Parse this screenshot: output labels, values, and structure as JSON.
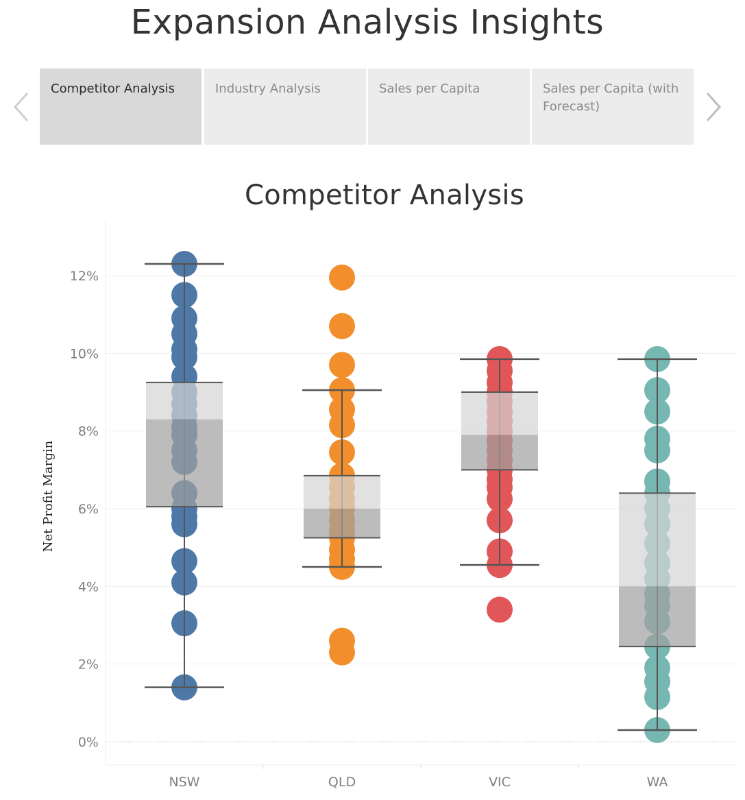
{
  "header": {
    "title": "Expansion Analysis Insights"
  },
  "nav": {
    "prev_icon": "chevron-left-icon",
    "next_icon": "chevron-right-icon"
  },
  "tabs": [
    {
      "label": "Competitor Analysis",
      "active": true
    },
    {
      "label": "Industry Analysis",
      "active": false
    },
    {
      "label": "Sales per Capita",
      "active": false
    },
    {
      "label": "Sales per Capita (with Forecast)",
      "active": false
    }
  ],
  "chart_data": {
    "type": "box-and-dot",
    "title": "Competitor Analysis",
    "xlabel": "",
    "ylabel": "Net Profit Margin",
    "ylim": [
      -0.6,
      13.0
    ],
    "yticks": [
      0,
      2,
      4,
      6,
      8,
      10,
      12
    ],
    "ytick_labels": [
      "0%",
      "2%",
      "4%",
      "6%",
      "8%",
      "10%",
      "12%"
    ],
    "gridlines": true,
    "categories": [
      "NSW",
      "QLD",
      "VIC",
      "WA"
    ],
    "series": [
      {
        "category": "NSW",
        "color": "#4e79a7",
        "whisker_low": 1.4,
        "q1": 6.05,
        "median": 8.3,
        "q3": 9.25,
        "whisker_high": 12.3,
        "points": [
          12.3,
          11.5,
          10.9,
          10.5,
          10.1,
          9.9,
          9.4,
          9.0,
          8.7,
          8.4,
          8.1,
          7.9,
          7.5,
          7.2,
          6.4,
          6.0,
          5.8,
          5.6,
          4.65,
          4.1,
          3.05,
          1.4
        ]
      },
      {
        "category": "QLD",
        "color": "#f28e2b",
        "whisker_low": 4.5,
        "q1": 5.25,
        "median": 6.0,
        "q3": 6.85,
        "whisker_high": 9.05,
        "points": [
          11.95,
          10.7,
          9.7,
          9.05,
          8.55,
          8.15,
          7.45,
          6.85,
          6.55,
          6.25,
          6.0,
          5.7,
          5.45,
          5.25,
          4.95,
          4.7,
          4.5,
          2.6,
          2.3
        ]
      },
      {
        "category": "VIC",
        "color": "#e15759",
        "whisker_low": 4.55,
        "q1": 7.0,
        "median": 7.9,
        "q3": 9.0,
        "whisker_high": 9.85,
        "points": [
          9.85,
          9.55,
          9.25,
          9.0,
          8.75,
          8.5,
          8.25,
          8.0,
          7.75,
          7.5,
          7.25,
          7.0,
          6.75,
          6.55,
          6.25,
          5.7,
          4.9,
          4.55,
          3.4
        ]
      },
      {
        "category": "WA",
        "color": "#76b7b2",
        "whisker_low": 0.3,
        "q1": 2.45,
        "median": 4.0,
        "q3": 6.4,
        "whisker_high": 9.85,
        "points": [
          9.85,
          9.05,
          8.5,
          7.8,
          7.5,
          6.7,
          6.4,
          6.0,
          5.6,
          5.1,
          4.6,
          4.2,
          3.8,
          3.5,
          3.1,
          2.45,
          1.9,
          1.55,
          1.15,
          0.3
        ]
      }
    ]
  }
}
